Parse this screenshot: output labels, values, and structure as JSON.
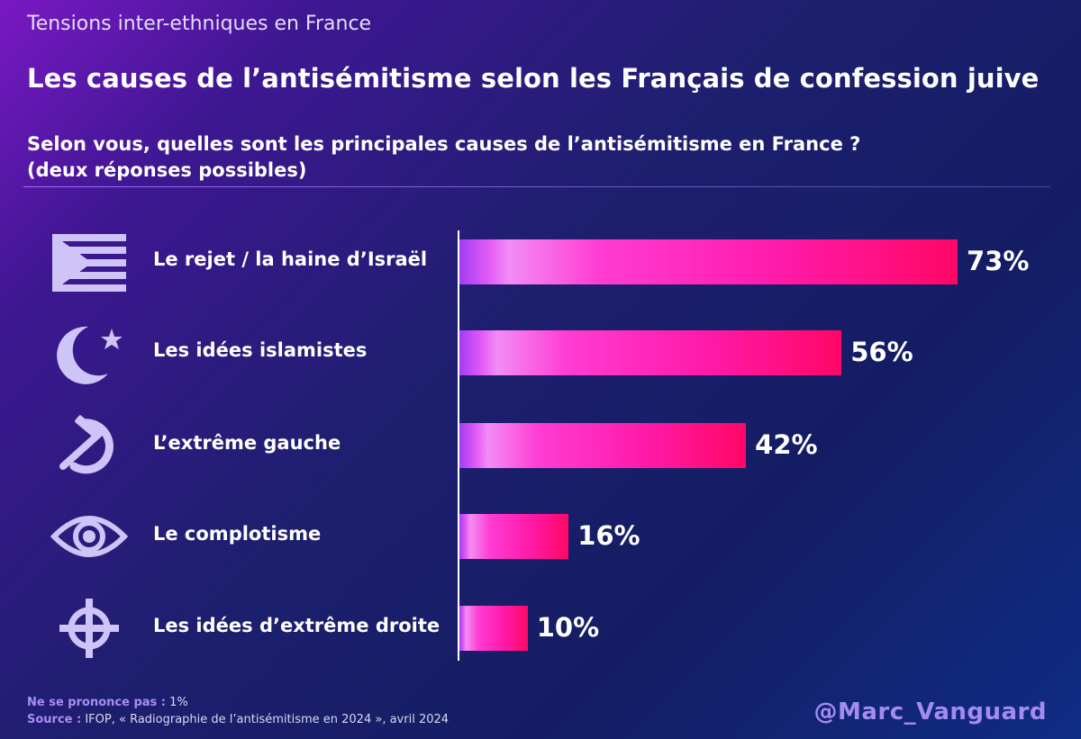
{
  "kicker": "Tensions inter-ethniques en France",
  "title": "Les causes de l’antisémitisme selon les Français de confession juive",
  "question_line1": "Selon vous, quelles sont les principales causes de l’antisémitisme en France ?",
  "question_line2": "(deux réponses possibles)",
  "chart_data": {
    "type": "bar",
    "orientation": "horizontal",
    "categories": [
      "Le rejet / la haine d’Israël",
      "Les idées islamistes",
      "L’extrême gauche",
      "Le complotisme",
      "Les idées d’extrême droite"
    ],
    "values": [
      73,
      56,
      42,
      16,
      10
    ],
    "value_labels": [
      "73%",
      "56%",
      "42%",
      "16%",
      "10%"
    ],
    "icons": [
      "flag-icon",
      "crescent-star-icon",
      "hammer-sickle-icon",
      "eye-icon",
      "celtic-cross-icon"
    ],
    "unit": "%",
    "xlim": [
      0,
      73
    ],
    "grid": false,
    "legend": "none",
    "colors": {
      "bar_start": "#a23cf2",
      "bar_end": "#ff0766",
      "label": "#ffffff"
    }
  },
  "footnotes": {
    "nsp_label": "Ne se prononce pas :",
    "nsp_value": " 1%",
    "source_label": "Source :",
    "source_value": " IFOP, « Radiographie de l’antisémitisme en 2024 », avril 2024"
  },
  "handle": "@Marc_Vanguard"
}
